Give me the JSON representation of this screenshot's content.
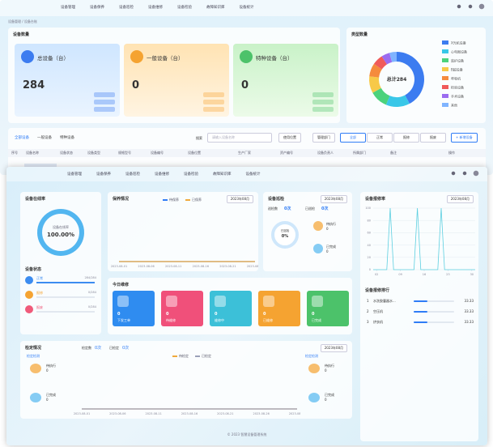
{
  "back": {
    "nav": [
      "设备管理",
      "设备保养",
      "设备巡检",
      "设备维修",
      "设备检验",
      "故障知识库",
      "设备统计"
    ],
    "breadcrumb": "设备管理 / 设备台账",
    "count_title": "设备数量",
    "cards": [
      {
        "label": "总设备（台）",
        "value": 284
      },
      {
        "label": "一般设备（台）",
        "value": 0
      },
      {
        "label": "特种设备（台）",
        "value": 0
      }
    ],
    "type_title": "类型数量",
    "tabs": [
      "全部设备",
      "一般设备",
      "特种设备"
    ],
    "search_label": "搜索",
    "search_placeholder": "请输入设备名称",
    "filters": [
      "使用位置",
      "管理部门"
    ],
    "status_buttons": [
      "全部",
      "正常",
      "报修",
      "报废"
    ],
    "add_button": "+ 新增设备",
    "columns": [
      "序号",
      "设备名称",
      "设备状态",
      "设备类型",
      "规格型号",
      "设备编号",
      "设备位置",
      "生产厂家",
      "资产编号",
      "设备负责人",
      "所属部门",
      "备注",
      "操作"
    ]
  },
  "type_chart": {
    "type": "pie",
    "center_label": "总计284",
    "categories": [
      "X光机设备",
      "心电图设备",
      "监护设备",
      "B超设备",
      "呼吸机",
      "检验设备",
      "手术设备",
      "其他"
    ],
    "values": [
      120,
      40,
      30,
      28,
      22,
      18,
      14,
      12
    ],
    "colors": [
      "#3c7cf0",
      "#39c7e8",
      "#4cd27c",
      "#f7c948",
      "#f58b3d",
      "#f05a5a",
      "#9b6cf0",
      "#7fb4ff"
    ]
  },
  "front": {
    "nav": [
      "设备管理",
      "设备保养",
      "设备巡检",
      "设备维修",
      "设备检验",
      "故障知识库",
      "设备统计"
    ],
    "online": {
      "title": "设备在线率",
      "ring_label": "设备在线率",
      "value": 100,
      "value_label": "100.00%"
    },
    "status": {
      "title": "设备状态",
      "rows": [
        {
          "name": "正常",
          "value": 284,
          "label": "284/284"
        },
        {
          "name": "报修",
          "value": 0,
          "label": "0/284"
        },
        {
          "name": "报废",
          "value": 0,
          "label": "0/284"
        }
      ]
    },
    "maintenance": {
      "title": "保养情况",
      "month": "2023年08月"
    },
    "inspection": {
      "title": "设备巡检",
      "month": "2023年08月",
      "stats": [
        {
          "label": "巡检数",
          "value": "0次"
        },
        {
          "label": "已巡检",
          "value": "0次"
        }
      ],
      "ring_label": "已巡检",
      "ring_value": "0%",
      "todo": {
        "label": "待执行",
        "value": "0"
      },
      "done": {
        "label": "已完成",
        "value": "0"
      }
    },
    "repair_rate": {
      "title": "设备报修率",
      "month": "2023年08月"
    },
    "today": {
      "title": "今日维修",
      "items": [
        {
          "value": "0",
          "label": "下发工单"
        },
        {
          "value": "0",
          "label": "待维修"
        },
        {
          "value": "0",
          "label": "维修中"
        },
        {
          "value": "0",
          "label": "已维修"
        },
        {
          "value": "0",
          "label": "已完成"
        }
      ]
    },
    "ranking": {
      "title": "设备报修排行",
      "items": [
        {
          "rank": "1",
          "name": "水洗胶囊器水...",
          "value": 33.33
        },
        {
          "rank": "2",
          "name": "空压机",
          "value": 33.33
        },
        {
          "rank": "3",
          "name": "烘衣机",
          "value": 33.33
        }
      ]
    },
    "calibration": {
      "title": "检定情况",
      "month": "2023年08月",
      "stats": [
        {
          "label": "检定数",
          "value": "0次"
        },
        {
          "label": "已检定",
          "value": "0次"
        }
      ],
      "left": "检定检测",
      "right": "检定检测",
      "todo": {
        "label": "待执行",
        "value": "0"
      },
      "done": {
        "label": "已完成",
        "value": "0"
      }
    },
    "footer": "© 2023 智慧设备管理系统"
  },
  "maintenance_chart": {
    "type": "line",
    "categories": [
      "2023-08-01",
      "2023-08-06",
      "2023-08-11",
      "2023-08-16",
      "2023-08-21",
      "2023-08-26"
    ],
    "series": [
      {
        "name": "待保养",
        "color": "#2f7cf6",
        "values": [
          0,
          0,
          0,
          0,
          0,
          0
        ]
      },
      {
        "name": "已保养",
        "color": "#f0a93c",
        "values": [
          0,
          0,
          0,
          0,
          0,
          0
        ]
      }
    ],
    "ylim": [
      0,
      1
    ]
  },
  "repair_chart": {
    "type": "line",
    "x": [
      1,
      2,
      3,
      4,
      5,
      6,
      7,
      8,
      9,
      10,
      11,
      12,
      13,
      14,
      15,
      16,
      17,
      18,
      19,
      20,
      21,
      22,
      23,
      24,
      25,
      26,
      27,
      28,
      29,
      30,
      31
    ],
    "series": [
      {
        "name": "报修率",
        "color": "#5ccfe0",
        "values": [
          0,
          0,
          0,
          0,
          0,
          100,
          0,
          0,
          0,
          0,
          0,
          0,
          0,
          100,
          0,
          0,
          0,
          0,
          0,
          0,
          100,
          0,
          0,
          0,
          0,
          0,
          0,
          0,
          0,
          0,
          0
        ]
      }
    ],
    "xlim": [
      1,
      31
    ],
    "xticks": [
      {
        "value": 2,
        "label": "02"
      },
      {
        "value": 9,
        "label": "09"
      },
      {
        "value": 16,
        "label": "16"
      },
      {
        "value": 23,
        "label": "23"
      },
      {
        "value": 30,
        "label": "30"
      }
    ],
    "ylim": [
      0,
      100
    ],
    "yticks": [
      0,
      20,
      40,
      60,
      80,
      100
    ]
  },
  "calibration_chart": {
    "type": "line",
    "categories": [
      "2023-08-01",
      "2023-08-06",
      "2023-08-11",
      "2023-08-16",
      "2023-08-21",
      "2023-08-26",
      "2023-08-31"
    ],
    "series": [
      {
        "name": "待检定",
        "color": "#f0a93c",
        "values": [
          0,
          0,
          0,
          0,
          0,
          0,
          0
        ]
      },
      {
        "name": "已检定",
        "color": "#9aa0b8",
        "values": [
          0,
          0,
          0,
          0,
          0,
          0,
          0
        ]
      }
    ],
    "ylim": [
      0,
      1
    ]
  }
}
